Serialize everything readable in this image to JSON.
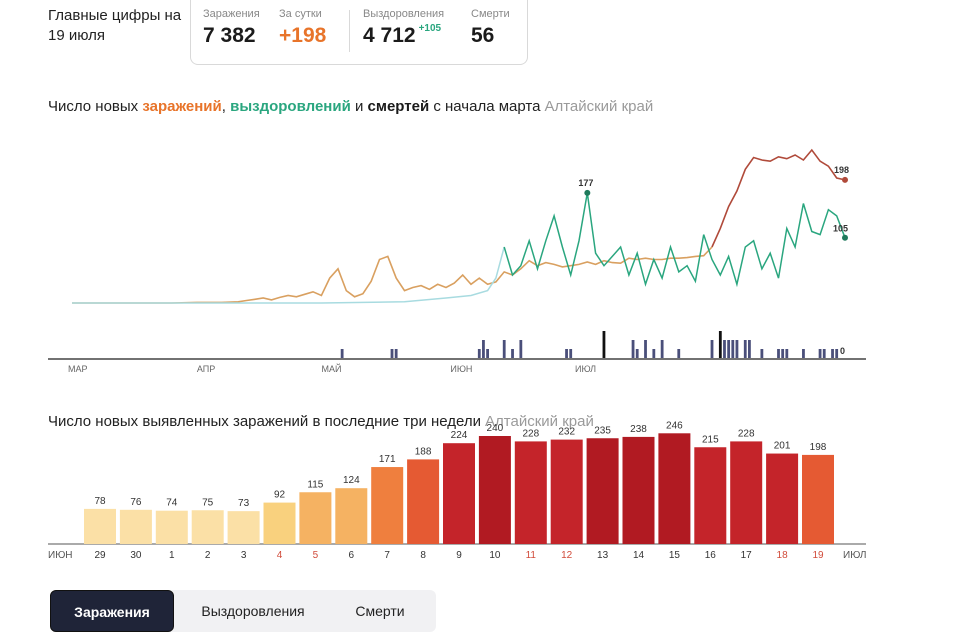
{
  "header": {
    "title": "Главные цифры на 19 июля"
  },
  "stats": {
    "infections_label": "Заражения",
    "infections_value": "7 382",
    "day_label": "За сутки",
    "day_value": "+198",
    "recoveries_label": "Выздоровления",
    "recoveries_value": "4 712",
    "recoveries_day": "+105",
    "deaths_label": "Смерти",
    "deaths_value": "56"
  },
  "line_title": {
    "p1": "Число новых ",
    "infections": "заражений",
    "p2": ", ",
    "recoveries": "выздоровлений",
    "p3": " и ",
    "deaths": "смертей",
    "p4": " с начала марта",
    "region": "Алтайский край"
  },
  "bar_title": {
    "text": "Число новых выявленных заражений в последние три недели",
    "region": "Алтайский край"
  },
  "chart_data": [
    {
      "type": "line",
      "series": [
        {
          "key": "infections",
          "color": "#e8742a",
          "points": [
            [
              0,
              0
            ],
            [
              6,
              0
            ],
            [
              12,
              0
            ],
            [
              18,
              0
            ],
            [
              24,
              0
            ],
            [
              30,
              1
            ],
            [
              36,
              1
            ],
            [
              40,
              2
            ],
            [
              42,
              4
            ],
            [
              44,
              6
            ],
            [
              46,
              8
            ],
            [
              48,
              5
            ],
            [
              50,
              9
            ],
            [
              52,
              12
            ],
            [
              54,
              10
            ],
            [
              56,
              14
            ],
            [
              58,
              18
            ],
            [
              60,
              12
            ],
            [
              62,
              40
            ],
            [
              64,
              55
            ],
            [
              66,
              20
            ],
            [
              68,
              10
            ],
            [
              70,
              15
            ],
            [
              72,
              35
            ],
            [
              74,
              70
            ],
            [
              76,
              75
            ],
            [
              78,
              40
            ],
            [
              80,
              20
            ],
            [
              82,
              25
            ],
            [
              84,
              28
            ],
            [
              86,
              22
            ],
            [
              88,
              30
            ],
            [
              90,
              25
            ],
            [
              92,
              32
            ],
            [
              94,
              45
            ],
            [
              96,
              30
            ],
            [
              98,
              40
            ],
            [
              100,
              30
            ],
            [
              102,
              34
            ],
            [
              104,
              50
            ],
            [
              106,
              45
            ],
            [
              108,
              55
            ],
            [
              110,
              68
            ],
            [
              112,
              60
            ],
            [
              114,
              65
            ],
            [
              116,
              62
            ],
            [
              118,
              58
            ],
            [
              120,
              60
            ],
            [
              122,
              62
            ],
            [
              124,
              66
            ],
            [
              126,
              62
            ],
            [
              128,
              68
            ],
            [
              130,
              65
            ],
            [
              132,
              64
            ],
            [
              134,
              72
            ],
            [
              136,
              70
            ],
            [
              138,
              72
            ],
            [
              140,
              70
            ],
            [
              142,
              70
            ],
            [
              144,
              72
            ],
            [
              146,
              72
            ],
            [
              148,
              73
            ],
            [
              150,
              75
            ],
            [
              152,
              76
            ],
            [
              154,
              90
            ],
            [
              156,
              120
            ],
            [
              158,
              155
            ],
            [
              160,
              180
            ],
            [
              162,
              215
            ],
            [
              164,
              234
            ],
            [
              166,
              230
            ],
            [
              168,
              228
            ],
            [
              170,
              235
            ],
            [
              172,
              232
            ],
            [
              174,
              238
            ],
            [
              176,
              230
            ],
            [
              178,
              246
            ],
            [
              180,
              228
            ],
            [
              182,
              220
            ],
            [
              184,
              201
            ],
            [
              186,
              198
            ]
          ],
          "last_label": "198"
        },
        {
          "key": "recoveries",
          "color": "#2aa67f",
          "points": [
            [
              0,
              0
            ],
            [
              40,
              0
            ],
            [
              60,
              0
            ],
            [
              80,
              2
            ],
            [
              90,
              8
            ],
            [
              96,
              12
            ],
            [
              100,
              20
            ],
            [
              102,
              40
            ],
            [
              104,
              90
            ],
            [
              106,
              45
            ],
            [
              108,
              60
            ],
            [
              110,
              100
            ],
            [
              112,
              55
            ],
            [
              114,
              100
            ],
            [
              116,
              140
            ],
            [
              118,
              90
            ],
            [
              120,
              45
            ],
            [
              122,
              100
            ],
            [
              124,
              177
            ],
            [
              126,
              80
            ],
            [
              128,
              60
            ],
            [
              130,
              75
            ],
            [
              132,
              90
            ],
            [
              134,
              45
            ],
            [
              136,
              80
            ],
            [
              138,
              30
            ],
            [
              140,
              70
            ],
            [
              142,
              40
            ],
            [
              144,
              90
            ],
            [
              146,
              50
            ],
            [
              148,
              60
            ],
            [
              150,
              35
            ],
            [
              152,
              110
            ],
            [
              154,
              70
            ],
            [
              156,
              45
            ],
            [
              158,
              75
            ],
            [
              160,
              30
            ],
            [
              162,
              90
            ],
            [
              164,
              100
            ],
            [
              166,
              55
            ],
            [
              168,
              80
            ],
            [
              170,
              40
            ],
            [
              172,
              120
            ],
            [
              174,
              90
            ],
            [
              176,
              160
            ],
            [
              178,
              115
            ],
            [
              180,
              110
            ],
            [
              182,
              150
            ],
            [
              184,
              140
            ],
            [
              186,
              105
            ]
          ],
          "last_label": "105",
          "peak_label": "177"
        },
        {
          "key": "deaths",
          "color": "#1b1b1b",
          "bars": [
            [
              65,
              1
            ],
            [
              77,
              1
            ],
            [
              78,
              1
            ],
            [
              98,
              1
            ],
            [
              99,
              2
            ],
            [
              100,
              1
            ],
            [
              104,
              2
            ],
            [
              106,
              1
            ],
            [
              108,
              2
            ],
            [
              119,
              1
            ],
            [
              120,
              1
            ],
            [
              128,
              3
            ],
            [
              135,
              2
            ],
            [
              136,
              1
            ],
            [
              138,
              2
            ],
            [
              140,
              1
            ],
            [
              142,
              2
            ],
            [
              146,
              1
            ],
            [
              154,
              2
            ],
            [
              156,
              3
            ],
            [
              157,
              2
            ],
            [
              158,
              2
            ],
            [
              159,
              2
            ],
            [
              160,
              2
            ],
            [
              162,
              2
            ],
            [
              163,
              2
            ],
            [
              166,
              1
            ],
            [
              170,
              1
            ],
            [
              171,
              1
            ],
            [
              172,
              1
            ],
            [
              176,
              1
            ],
            [
              180,
              1
            ],
            [
              181,
              1
            ],
            [
              183,
              1
            ],
            [
              184,
              1
            ]
          ],
          "last_label": "0"
        }
      ],
      "x_ticks": [
        {
          "day": 0,
          "label": "МАР"
        },
        {
          "day": 31,
          "label": "АПР"
        },
        {
          "day": 61,
          "label": "МАЙ"
        },
        {
          "day": 92,
          "label": "ИЮН"
        },
        {
          "day": 122,
          "label": "ИЮЛ"
        }
      ]
    },
    {
      "type": "bar",
      "categories": [
        "29",
        "30",
        "1",
        "2",
        "3",
        "4",
        "5",
        "6",
        "7",
        "8",
        "9",
        "10",
        "11",
        "12",
        "13",
        "14",
        "15",
        "16",
        "17",
        "18",
        "19"
      ],
      "values": [
        78,
        76,
        74,
        75,
        73,
        92,
        115,
        124,
        171,
        188,
        224,
        240,
        228,
        232,
        235,
        238,
        246,
        215,
        228,
        201,
        198
      ],
      "weekend": [
        false,
        false,
        false,
        false,
        false,
        true,
        true,
        false,
        false,
        false,
        false,
        false,
        true,
        true,
        false,
        false,
        false,
        false,
        false,
        true,
        true
      ],
      "left_label": "ИЮН",
      "right_label": "ИЮЛ",
      "ylim": [
        0,
        260
      ]
    }
  ],
  "tabs": [
    {
      "label": "Заражения",
      "active": true
    },
    {
      "label": "Выздоровления",
      "active": false
    },
    {
      "label": "Смерти",
      "active": false
    }
  ]
}
